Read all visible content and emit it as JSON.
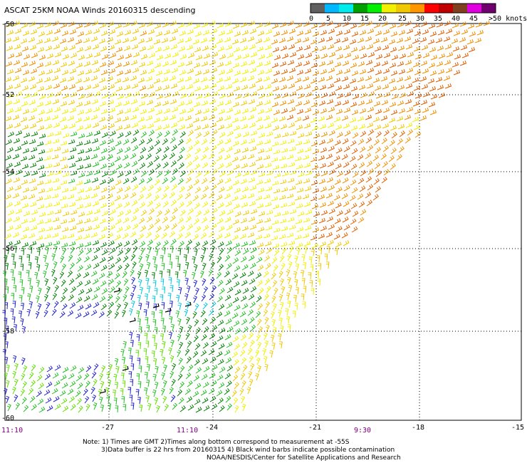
{
  "title": "ASCAT 25KM NOAA Winds 20160315 descending",
  "legend": {
    "labels": [
      "0",
      "5",
      "10",
      "15",
      "20",
      "25",
      "30",
      "35",
      "40",
      "45",
      ">50 knots"
    ],
    "colors": [
      "#606060",
      "#00b8ff",
      "#00ecec",
      "#00a000",
      "#00f000",
      "#f0f000",
      "#f0c800",
      "#ff9600",
      "#ff0000",
      "#c00000",
      "#804020",
      "#e000e0",
      "#700070"
    ]
  },
  "axes": {
    "lat_labels": [
      "-50",
      "-52",
      "-54",
      "-56",
      "-58",
      "-60"
    ],
    "lon_labels": [
      "-27",
      "-24",
      "-21",
      "-18",
      "-15"
    ],
    "time_labels": [
      "11:10",
      "11:10",
      "9:30"
    ]
  },
  "notes": {
    "line1": "Note: 1) Times are GMT 2)Times along bottom correspond to measurement at -55S",
    "line2": "3)Data buffer is 22 hrs from 20160315 4) Black wind barbs indicate possible contamination",
    "line3": "NOAA/NESDIS/Center for Satellite Applications and Research"
  }
}
